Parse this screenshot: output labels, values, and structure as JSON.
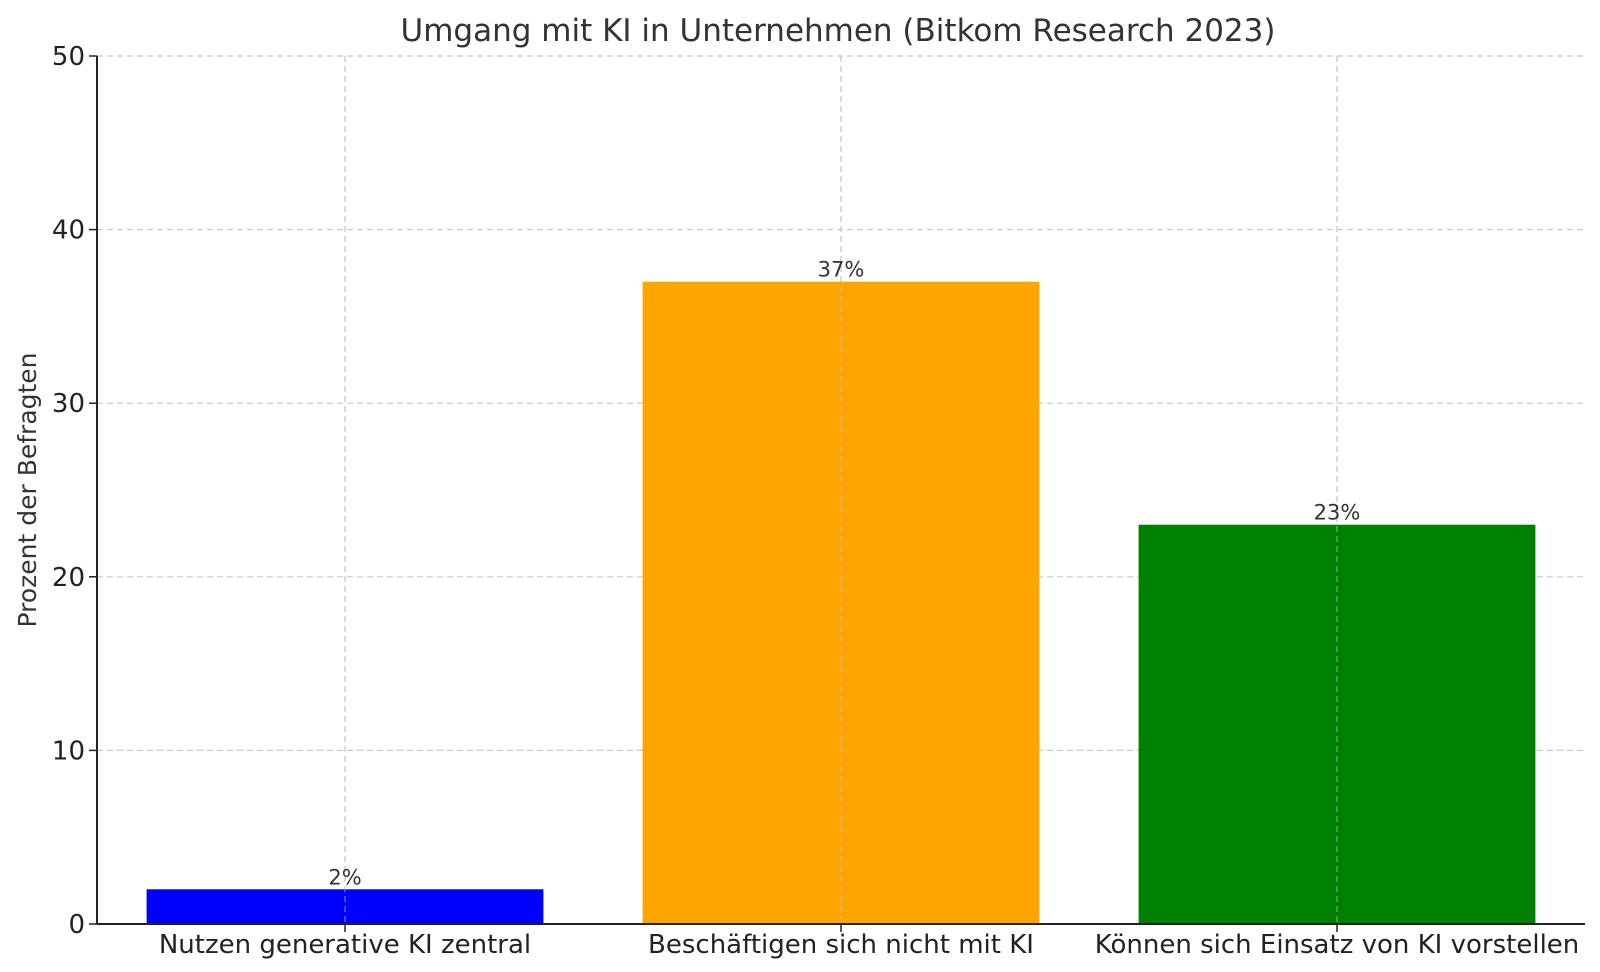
{
  "chart_data": {
    "type": "bar",
    "title": "Umgang mit KI in Unternehmen (Bitkom Research 2023)",
    "xlabel": "",
    "ylabel": "Prozent der Befragten",
    "categories": [
      "Nutzen generative KI zentral",
      "Beschäftigen sich nicht mit KI",
      "Können sich Einsatz von KI vorstellen"
    ],
    "values": [
      2,
      37,
      23
    ],
    "data_labels": [
      "2%",
      "37%",
      "23%"
    ],
    "colors": [
      "#0000ff",
      "#ffa500",
      "#008000"
    ],
    "ylim": [
      0,
      50
    ],
    "yticks": [
      0,
      10,
      20,
      30,
      40,
      50
    ],
    "grid": true,
    "legend": "none"
  }
}
